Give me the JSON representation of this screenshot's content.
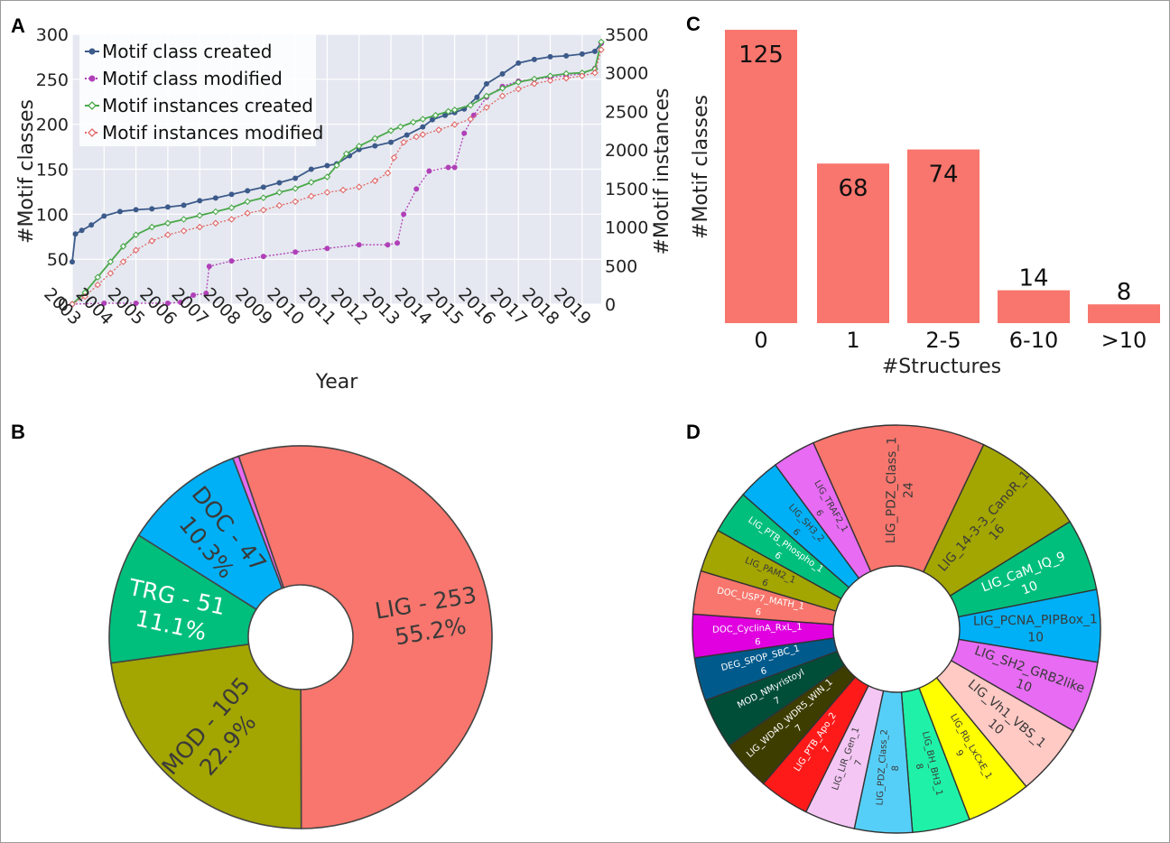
{
  "panels": {
    "a": "A",
    "b": "B",
    "c": "C",
    "d": "D"
  },
  "chart_data": [
    {
      "type": "line",
      "panel": "A",
      "xlabel": "Year",
      "ylabel": "#Motif classes",
      "y2label": "#Motif instances",
      "xlim": [
        2003,
        2019.6
      ],
      "ylim": [
        0,
        300
      ],
      "y2lim": [
        0,
        3500
      ],
      "yticks": [
        0,
        50,
        100,
        150,
        200,
        250,
        300
      ],
      "y2ticks": [
        0,
        500,
        1000,
        1500,
        2000,
        2500,
        3000,
        3500
      ],
      "xticks": [
        "2003",
        "2004",
        "2005",
        "2006",
        "2007",
        "2008",
        "2009",
        "2010",
        "2011",
        "2012",
        "2013",
        "2014",
        "2015",
        "2016",
        "2017",
        "2018",
        "2019"
      ],
      "legend_position": "top-left",
      "grid": true,
      "series": [
        {
          "name": "Motif class created",
          "axis": "left",
          "color": "#3c5a8a",
          "marker": "circle",
          "x": [
            2003.0,
            2003.1,
            2003.3,
            2003.6,
            2004.0,
            2004.5,
            2005.0,
            2005.5,
            2006.0,
            2006.5,
            2007.0,
            2007.5,
            2008.0,
            2008.5,
            2009.0,
            2009.5,
            2010.0,
            2010.5,
            2011.0,
            2011.3,
            2011.7,
            2012.0,
            2012.5,
            2013.0,
            2013.5,
            2014.0,
            2014.3,
            2014.7,
            2015.0,
            2015.3,
            2015.7,
            2016.0,
            2016.5,
            2017.0,
            2017.5,
            2018.0,
            2018.5,
            2019.0,
            2019.4,
            2019.6
          ],
          "y": [
            47,
            78,
            82,
            88,
            98,
            103,
            105,
            106,
            108,
            110,
            115,
            118,
            122,
            126,
            130,
            135,
            140,
            150,
            154,
            156,
            165,
            172,
            176,
            180,
            188,
            197,
            205,
            210,
            213,
            217,
            230,
            245,
            256,
            268,
            272,
            275,
            276,
            278,
            281,
            290
          ]
        },
        {
          "name": "Motif class modified",
          "axis": "left",
          "color": "#b040b8",
          "marker": "circle",
          "x": [
            2003.0,
            2004.0,
            2005.0,
            2006.0,
            2006.4,
            2006.8,
            2007.2,
            2007.3,
            2008.0,
            2009.0,
            2010.0,
            2011.0,
            2012.0,
            2012.9,
            2013.2,
            2013.4,
            2013.8,
            2014.2,
            2014.8,
            2015.0,
            2015.3,
            2015.6,
            2016.0,
            2016.5,
            2017.0,
            2017.5,
            2018.0,
            2018.5,
            2019.0,
            2019.4,
            2019.6
          ],
          "y": [
            0,
            1,
            1,
            1,
            2,
            10,
            12,
            42,
            48,
            53,
            58,
            62,
            66,
            66,
            68,
            100,
            128,
            148,
            152,
            152,
            190,
            210,
            230,
            242,
            248,
            250,
            252,
            254,
            256,
            262,
            290
          ]
        },
        {
          "name": "Motif instances created",
          "axis": "right",
          "color": "#4aa84a",
          "marker": "diamond",
          "x": [
            2003.0,
            2003.4,
            2003.8,
            2004.2,
            2004.6,
            2005.0,
            2005.5,
            2006.0,
            2006.5,
            2007.0,
            2007.5,
            2008.0,
            2008.5,
            2009.0,
            2009.5,
            2010.0,
            2010.5,
            2011.0,
            2011.3,
            2011.6,
            2012.0,
            2012.5,
            2013.0,
            2013.3,
            2013.7,
            2014.0,
            2014.4,
            2014.8,
            2015.0,
            2015.5,
            2016.0,
            2016.5,
            2017.0,
            2017.5,
            2018.0,
            2018.5,
            2019.0,
            2019.4,
            2019.6
          ],
          "y": [
            0,
            150,
            350,
            550,
            750,
            900,
            1000,
            1050,
            1100,
            1150,
            1200,
            1250,
            1330,
            1380,
            1450,
            1500,
            1580,
            1650,
            1800,
            1950,
            2050,
            2150,
            2250,
            2300,
            2360,
            2400,
            2450,
            2500,
            2520,
            2580,
            2700,
            2800,
            2880,
            2920,
            2960,
            2990,
            3000,
            3050,
            3400
          ]
        },
        {
          "name": "Motif instances modified",
          "axis": "right",
          "color": "#e06a6a",
          "marker": "diamond",
          "x": [
            2003.0,
            2003.4,
            2003.8,
            2004.2,
            2004.6,
            2005.0,
            2005.5,
            2006.0,
            2006.5,
            2007.0,
            2007.5,
            2008.0,
            2008.5,
            2009.0,
            2009.5,
            2010.0,
            2010.5,
            2011.0,
            2011.5,
            2012.0,
            2012.5,
            2012.9,
            2013.1,
            2013.4,
            2013.8,
            2014.0,
            2014.5,
            2015.0,
            2015.5,
            2016.0,
            2016.5,
            2017.0,
            2017.5,
            2018.0,
            2018.5,
            2019.0,
            2019.4,
            2019.6
          ],
          "y": [
            0,
            100,
            250,
            400,
            550,
            700,
            820,
            900,
            950,
            1000,
            1050,
            1100,
            1180,
            1220,
            1280,
            1330,
            1400,
            1450,
            1480,
            1520,
            1600,
            1700,
            1900,
            2100,
            2170,
            2200,
            2260,
            2330,
            2400,
            2550,
            2700,
            2790,
            2860,
            2900,
            2930,
            2960,
            3000,
            3300
          ]
        }
      ]
    },
    {
      "type": "pie",
      "panel": "B",
      "donut": true,
      "slices": [
        {
          "label": "LIG - 253",
          "value": 55.2,
          "pct": "55.2%",
          "color": "#f8766d",
          "text_color": "#3a3a3a"
        },
        {
          "label": "MOD - 105",
          "value": 22.9,
          "pct": "22.9%",
          "color": "#a3a500",
          "text_color": "#3a3a3a"
        },
        {
          "label": "TRG - 51",
          "value": 11.1,
          "pct": "11.1%",
          "color": "#00bf7d",
          "text_color": "#ffffff"
        },
        {
          "label": "DOC - 47",
          "value": 10.3,
          "pct": "10.3%",
          "color": "#00b0f6",
          "text_color": "#3a3a3a"
        },
        {
          "label": "",
          "value": 0.5,
          "pct": "",
          "color": "#e76bf3",
          "text_color": "#3a3a3a"
        }
      ]
    },
    {
      "type": "bar",
      "panel": "C",
      "xlabel": "#Structures",
      "ylabel": "#Motif classes",
      "color": "#f8766d",
      "categories": [
        "0",
        "1",
        "2-5",
        "6-10",
        ">10"
      ],
      "values": [
        125,
        68,
        74,
        14,
        8
      ],
      "ylim": [
        0,
        125
      ]
    },
    {
      "type": "pie",
      "panel": "D",
      "donut": true,
      "slices": [
        {
          "label": "LIG_PDZ_Class_1",
          "value": 24,
          "color": "#f8766d",
          "text_color": "#3a3a3a"
        },
        {
          "label": "LIG_14-3-3_CanoR_1",
          "value": 16,
          "color": "#a3a500",
          "text_color": "#3a3a3a"
        },
        {
          "label": "LIG_CaM_IQ_9",
          "value": 10,
          "color": "#00bf7d",
          "text_color": "#ffffff"
        },
        {
          "label": "LIG_PCNA_PIPBox_1",
          "value": 10,
          "color": "#00b0f6",
          "text_color": "#3a3a3a"
        },
        {
          "label": "LIG_SH2_GRB2like",
          "value": 10,
          "color": "#e76bf3",
          "text_color": "#3a3a3a"
        },
        {
          "label": "LIG_Vh1_VBS_1",
          "value": 10,
          "color": "#ffc9c4",
          "text_color": "#3a3a3a"
        },
        {
          "label": "LIG_Rb_LxCxE_1",
          "value": 9,
          "color": "#ffff00",
          "text_color": "#3a3a3a"
        },
        {
          "label": "LIG_BH_BH3_1",
          "value": 8,
          "color": "#1ff2a8",
          "text_color": "#3a3a3a"
        },
        {
          "label": "LIG_PDZ_Class_2",
          "value": 8,
          "color": "#56cff8",
          "text_color": "#3a3a3a"
        },
        {
          "label": "LIG_LIR_Gen_1",
          "value": 7,
          "color": "#f4c6f4",
          "text_color": "#3a3a3a"
        },
        {
          "label": "LIG_PTB_Apo_2",
          "value": 7,
          "color": "#ff1a1a",
          "text_color": "#ffffff"
        },
        {
          "label": "LIG_WD40_WDR5_WIN_1",
          "value": 7,
          "color": "#3d3d00",
          "text_color": "#ffffff"
        },
        {
          "label": "MOD_NMyristoyl",
          "value": 7,
          "color": "#004d38",
          "text_color": "#ffffff"
        },
        {
          "label": "DEG_SPOP_SBC_1",
          "value": 6,
          "color": "#005a8c",
          "text_color": "#ffffff"
        },
        {
          "label": "DOC_CyclinA_RxL_1",
          "value": 6,
          "color": "#e000e0",
          "text_color": "#ffffff"
        },
        {
          "label": "DOC_USP7_MATH_1",
          "value": 6,
          "color": "#f8766d",
          "text_color": "#ffffff"
        },
        {
          "label": "LIG_PAM2_1",
          "value": 6,
          "color": "#a3a500",
          "text_color": "#3a3a3a"
        },
        {
          "label": "LIG_PTB_Phospho_1",
          "value": 6,
          "color": "#00bf7d",
          "text_color": "#ffffff"
        },
        {
          "label": "LIG_SH3_2",
          "value": 6,
          "color": "#00b0f6",
          "text_color": "#3a3a3a"
        },
        {
          "label": "LIG_TRAF2_1",
          "value": 6,
          "color": "#e76bf3",
          "text_color": "#3a3a3a"
        }
      ]
    }
  ]
}
